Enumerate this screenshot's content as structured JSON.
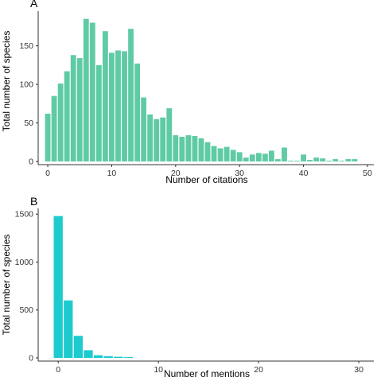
{
  "colors": {
    "panelA": "#5fcba4",
    "panelB": "#1dcbcf",
    "axis": "#333333"
  },
  "chart_data": [
    {
      "type": "bar",
      "panel_label": "A",
      "xlabel": "Number of citations",
      "ylabel": "Total number of species",
      "xlim": [
        -1.5,
        51
      ],
      "ylim": [
        0,
        195
      ],
      "xticks": [
        "0",
        "10",
        "20",
        "30",
        "40",
        "50"
      ],
      "yticks": [
        "0",
        "50",
        "100",
        "150"
      ],
      "grid": false,
      "x": [
        0,
        1,
        2,
        3,
        4,
        5,
        6,
        7,
        8,
        9,
        10,
        11,
        12,
        13,
        14,
        15,
        16,
        17,
        18,
        19,
        20,
        21,
        22,
        23,
        24,
        25,
        26,
        27,
        28,
        29,
        30,
        31,
        32,
        33,
        34,
        35,
        36,
        37,
        38,
        39,
        40,
        41,
        42,
        43,
        44,
        45,
        46,
        47,
        48
      ],
      "values": [
        62,
        85,
        101,
        117,
        138,
        134,
        185,
        180,
        125,
        169,
        141,
        144,
        143,
        172,
        127,
        83,
        61,
        55,
        57,
        69,
        34,
        32,
        34,
        33,
        30,
        25,
        20,
        17,
        19,
        15,
        12,
        5,
        9,
        11,
        10,
        14,
        3,
        18,
        1,
        1,
        9,
        2,
        5,
        4,
        1,
        3,
        1,
        3,
        3
      ]
    },
    {
      "type": "bar",
      "panel_label": "B",
      "xlabel": "Number of mentions",
      "ylabel": "Total number of species",
      "xlim": [
        -2,
        31.5
      ],
      "ylim": [
        0,
        1560
      ],
      "xticks": [
        "0",
        "10",
        "20",
        "30"
      ],
      "yticks": [
        "0",
        "500",
        "1000",
        "1500"
      ],
      "grid": false,
      "x": [
        0,
        1,
        2,
        3,
        4,
        5,
        6,
        7
      ],
      "values": [
        1480,
        600,
        230,
        80,
        28,
        18,
        12,
        8
      ]
    }
  ]
}
